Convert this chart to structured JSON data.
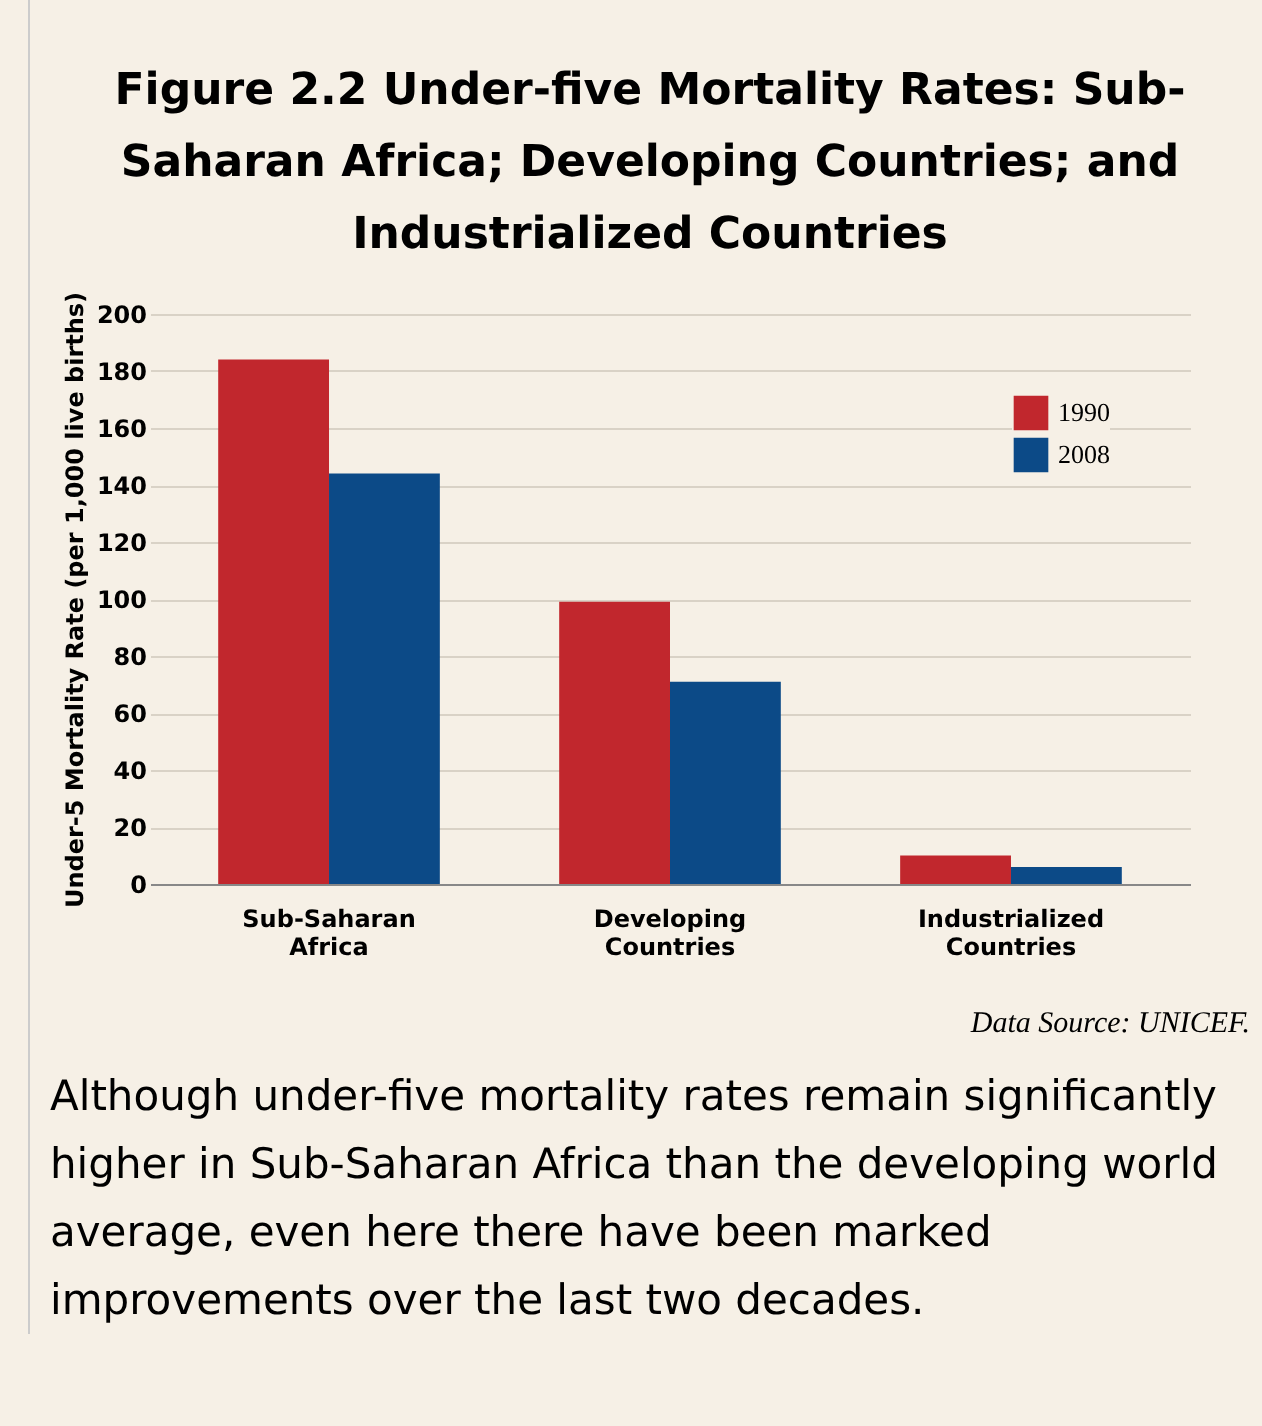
{
  "chart_data": {
    "type": "bar",
    "title": "Figure 2.2 Under-five Mortality Rates: Sub-Saharan Africa; Developing Countries; and Industrialized Countries",
    "ylabel": "Under-5 Mortality Rate (per 1,000 live births)",
    "categories": [
      "Sub-Saharan Africa",
      "Developing Countries",
      "Industrialized Countries"
    ],
    "series": [
      {
        "name": "1990",
        "color": "#c1272d",
        "values": [
          184,
          99,
          10
        ]
      },
      {
        "name": "2008",
        "color": "#0c4a87",
        "values": [
          144,
          71,
          6
        ]
      }
    ],
    "ylim": [
      0,
      200
    ],
    "yticks": [
      0,
      20,
      40,
      60,
      80,
      100,
      120,
      140,
      160,
      180,
      200
    ],
    "grid": "y",
    "legend": "top right",
    "annotations": [
      "Data Source: UNICEF.",
      "Although under-five mortality rates remain significantly higher in Sub-Saharan Africa than the developing world average, even here there have been marked improvements over the last two decades."
    ]
  }
}
